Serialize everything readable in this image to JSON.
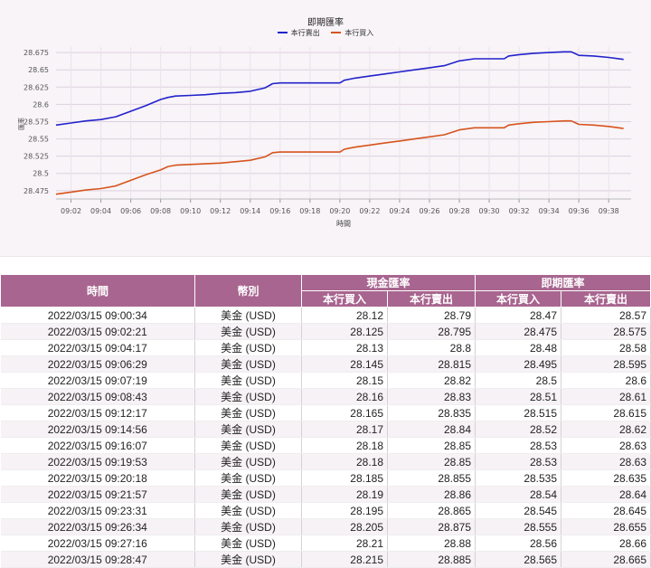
{
  "chart_data": {
    "type": "line",
    "title": "即期匯率",
    "xlabel": "時間",
    "ylabel": "匯率",
    "x_ticks": [
      "09:02",
      "09:04",
      "09:06",
      "09:08",
      "09:10",
      "09:12",
      "09:14",
      "09:16",
      "09:18",
      "09:20",
      "09:22",
      "09:24",
      "09:26",
      "09:28",
      "09:30",
      "09:32",
      "09:34",
      "09:36",
      "09:38"
    ],
    "x_range": [
      1,
      39.5
    ],
    "y_ticks": [
      28.475,
      28.5,
      28.525,
      28.55,
      28.575,
      28.6,
      28.625,
      28.65,
      28.675
    ],
    "ylim": [
      28.463,
      28.683
    ],
    "grid": true,
    "legend_position": "top-center",
    "series": [
      {
        "name": "本行賣出",
        "color": "#2222cc",
        "x": [
          1,
          2,
          3,
          4,
          5,
          6,
          7,
          8,
          8.5,
          9,
          10,
          11,
          12,
          13,
          14,
          15,
          15.5,
          16,
          17,
          18,
          19,
          20,
          20.3,
          21,
          22,
          23,
          24,
          25,
          26,
          27,
          28,
          29,
          30,
          31,
          31.3,
          32,
          33,
          34,
          35,
          35.5,
          36,
          37,
          38,
          39
        ],
        "y": [
          28.57,
          28.573,
          28.576,
          28.578,
          28.582,
          28.59,
          28.598,
          28.607,
          28.61,
          28.612,
          28.613,
          28.614,
          28.616,
          28.617,
          28.619,
          28.624,
          28.63,
          28.631,
          28.631,
          28.631,
          28.631,
          28.631,
          28.635,
          28.638,
          28.641,
          28.644,
          28.647,
          28.65,
          28.653,
          28.656,
          28.663,
          28.666,
          28.666,
          28.666,
          28.67,
          28.672,
          28.674,
          28.675,
          28.676,
          28.676,
          28.671,
          28.67,
          28.668,
          28.665
        ]
      },
      {
        "name": "本行買入",
        "color": "#d6541c",
        "x": [
          1,
          2,
          3,
          4,
          5,
          6,
          7,
          8,
          8.5,
          9,
          10,
          11,
          12,
          13,
          14,
          15,
          15.5,
          16,
          17,
          18,
          19,
          20,
          20.3,
          21,
          22,
          23,
          24,
          25,
          26,
          27,
          28,
          29,
          30,
          31,
          31.3,
          32,
          33,
          34,
          35,
          35.5,
          36,
          37,
          38,
          39
        ],
        "y": [
          28.47,
          28.473,
          28.476,
          28.478,
          28.482,
          28.49,
          28.498,
          28.505,
          28.51,
          28.512,
          28.513,
          28.514,
          28.515,
          28.517,
          28.519,
          28.524,
          28.53,
          28.531,
          28.531,
          28.531,
          28.531,
          28.531,
          28.535,
          28.538,
          28.541,
          28.544,
          28.547,
          28.55,
          28.553,
          28.556,
          28.563,
          28.566,
          28.566,
          28.566,
          28.57,
          28.572,
          28.574,
          28.575,
          28.576,
          28.576,
          28.571,
          28.57,
          28.568,
          28.565
        ]
      }
    ]
  },
  "table": {
    "headers": {
      "time": "時間",
      "currency": "幣別",
      "cash_group": "現金匯率",
      "spot_group": "即期匯率",
      "cash_buy": "本行買入",
      "cash_sell": "本行賣出",
      "spot_buy": "本行買入",
      "spot_sell": "本行賣出"
    },
    "rows": [
      [
        "2022/03/15 09:00:34",
        "美金 (USD)",
        "28.12",
        "28.79",
        "28.47",
        "28.57"
      ],
      [
        "2022/03/15 09:02:21",
        "美金 (USD)",
        "28.125",
        "28.795",
        "28.475",
        "28.575"
      ],
      [
        "2022/03/15 09:04:17",
        "美金 (USD)",
        "28.13",
        "28.8",
        "28.48",
        "28.58"
      ],
      [
        "2022/03/15 09:06:29",
        "美金 (USD)",
        "28.145",
        "28.815",
        "28.495",
        "28.595"
      ],
      [
        "2022/03/15 09:07:19",
        "美金 (USD)",
        "28.15",
        "28.82",
        "28.5",
        "28.6"
      ],
      [
        "2022/03/15 09:08:43",
        "美金 (USD)",
        "28.16",
        "28.83",
        "28.51",
        "28.61"
      ],
      [
        "2022/03/15 09:12:17",
        "美金 (USD)",
        "28.165",
        "28.835",
        "28.515",
        "28.615"
      ],
      [
        "2022/03/15 09:14:56",
        "美金 (USD)",
        "28.17",
        "28.84",
        "28.52",
        "28.62"
      ],
      [
        "2022/03/15 09:16:07",
        "美金 (USD)",
        "28.18",
        "28.85",
        "28.53",
        "28.63"
      ],
      [
        "2022/03/15 09:19:53",
        "美金 (USD)",
        "28.18",
        "28.85",
        "28.53",
        "28.63"
      ],
      [
        "2022/03/15 09:20:18",
        "美金 (USD)",
        "28.185",
        "28.855",
        "28.535",
        "28.635"
      ],
      [
        "2022/03/15 09:21:57",
        "美金 (USD)",
        "28.19",
        "28.86",
        "28.54",
        "28.64"
      ],
      [
        "2022/03/15 09:23:31",
        "美金 (USD)",
        "28.195",
        "28.865",
        "28.545",
        "28.645"
      ],
      [
        "2022/03/15 09:26:34",
        "美金 (USD)",
        "28.205",
        "28.875",
        "28.555",
        "28.655"
      ],
      [
        "2022/03/15 09:27:16",
        "美金 (USD)",
        "28.21",
        "28.88",
        "28.56",
        "28.66"
      ],
      [
        "2022/03/15 09:28:47",
        "美金 (USD)",
        "28.215",
        "28.885",
        "28.565",
        "28.665"
      ]
    ]
  }
}
